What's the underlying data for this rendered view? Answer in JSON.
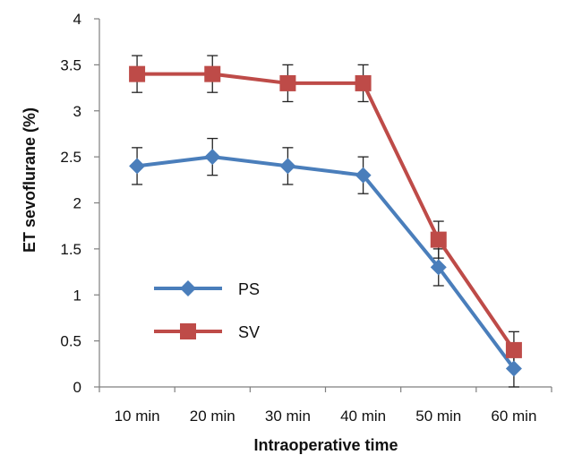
{
  "chart_data": {
    "type": "line",
    "title": "",
    "xlabel": "Intraoperative time",
    "ylabel": "ET sevoflurane  (%)",
    "categories": [
      "10 min",
      "20 min",
      "30 min",
      "40 min",
      "50 min",
      "60 min"
    ],
    "ylim": [
      0,
      4
    ],
    "yticks": [
      "0",
      "0.5",
      "1",
      "1.5",
      "2",
      "2.5",
      "3",
      "3.5",
      "4"
    ],
    "grid": false,
    "legend_position": "left",
    "series": [
      {
        "name": "PS",
        "color": "#4a7ebb",
        "marker": "diamond",
        "values": [
          2.4,
          2.5,
          2.4,
          2.3,
          1.3,
          0.2
        ],
        "error": [
          0.2,
          0.2,
          0.2,
          0.2,
          0.2,
          0.2
        ]
      },
      {
        "name": "SV",
        "color": "#be4b48",
        "marker": "square",
        "values": [
          3.4,
          3.4,
          3.3,
          3.3,
          1.6,
          0.4
        ],
        "error": [
          0.2,
          0.2,
          0.2,
          0.2,
          0.2,
          0.2
        ]
      }
    ]
  }
}
